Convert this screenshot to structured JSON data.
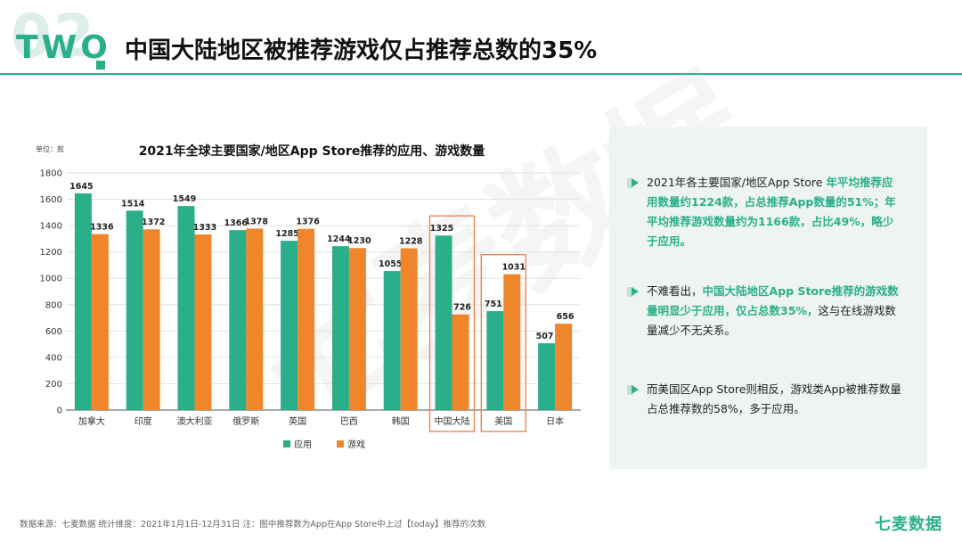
{
  "header": {
    "big_number": "02",
    "tag": "TWO",
    "title": "中国大陆地区被推荐游戏仅占推荐总数的35%"
  },
  "watermark": "七麦数据",
  "chart_data": {
    "type": "bar",
    "title": "2021年全球主要国家/地区App Store推荐的应用、游戏数量",
    "unit_label": "单位：款",
    "categories": [
      "加拿大",
      "印度",
      "澳大利亚",
      "俄罗斯",
      "英国",
      "巴西",
      "韩国",
      "中国大陆",
      "美国",
      "日本"
    ],
    "series": [
      {
        "name": "应用",
        "color": "#2baf8a",
        "values": [
          1645,
          1514,
          1549,
          1366,
          1285,
          1244,
          1055,
          1325,
          751,
          507
        ]
      },
      {
        "name": "游戏",
        "color": "#f0862c",
        "values": [
          1336,
          1372,
          1333,
          1378,
          1376,
          1230,
          1228,
          726,
          1031,
          656
        ]
      }
    ],
    "ylim": [
      0,
      1800
    ],
    "yticks": [
      0,
      200,
      400,
      600,
      800,
      1000,
      1200,
      1400,
      1600,
      1800
    ],
    "grid": true,
    "legend": "bottom",
    "highlighted_categories": [
      "中国大陆",
      "美国"
    ],
    "highlight_color": "#e8875a"
  },
  "panel": {
    "items": [
      {
        "segments": [
          {
            "text": "2021年各主要国家/地区App Store ",
            "hl": false
          },
          {
            "text": "年平均推荐应用数量约1224款，占总推荐App数量的51%；年平均推荐游戏数量约为1166款，占比49%，略少于应用。",
            "hl": true
          }
        ]
      },
      {
        "segments": [
          {
            "text": "不难看出，",
            "hl": false
          },
          {
            "text": "中国大陆地区App Store推荐的游戏数量明显少于应用，仅占总数35%，",
            "hl": true
          },
          {
            "text": "这与在线游戏数量减少不无关系。",
            "hl": false
          }
        ]
      },
      {
        "segments": [
          {
            "text": "而美国区App Store则相反，游戏类App被推荐数量占总推荐数的58%，多于应用。",
            "hl": false
          }
        ]
      }
    ]
  },
  "footer": {
    "source": "数据来源：七麦数据  统计维度：2021年1月1日-12月31日  注：图中推荐数为App在App Store中上过【today】推荐的次数",
    "brand": "七麦数据"
  }
}
